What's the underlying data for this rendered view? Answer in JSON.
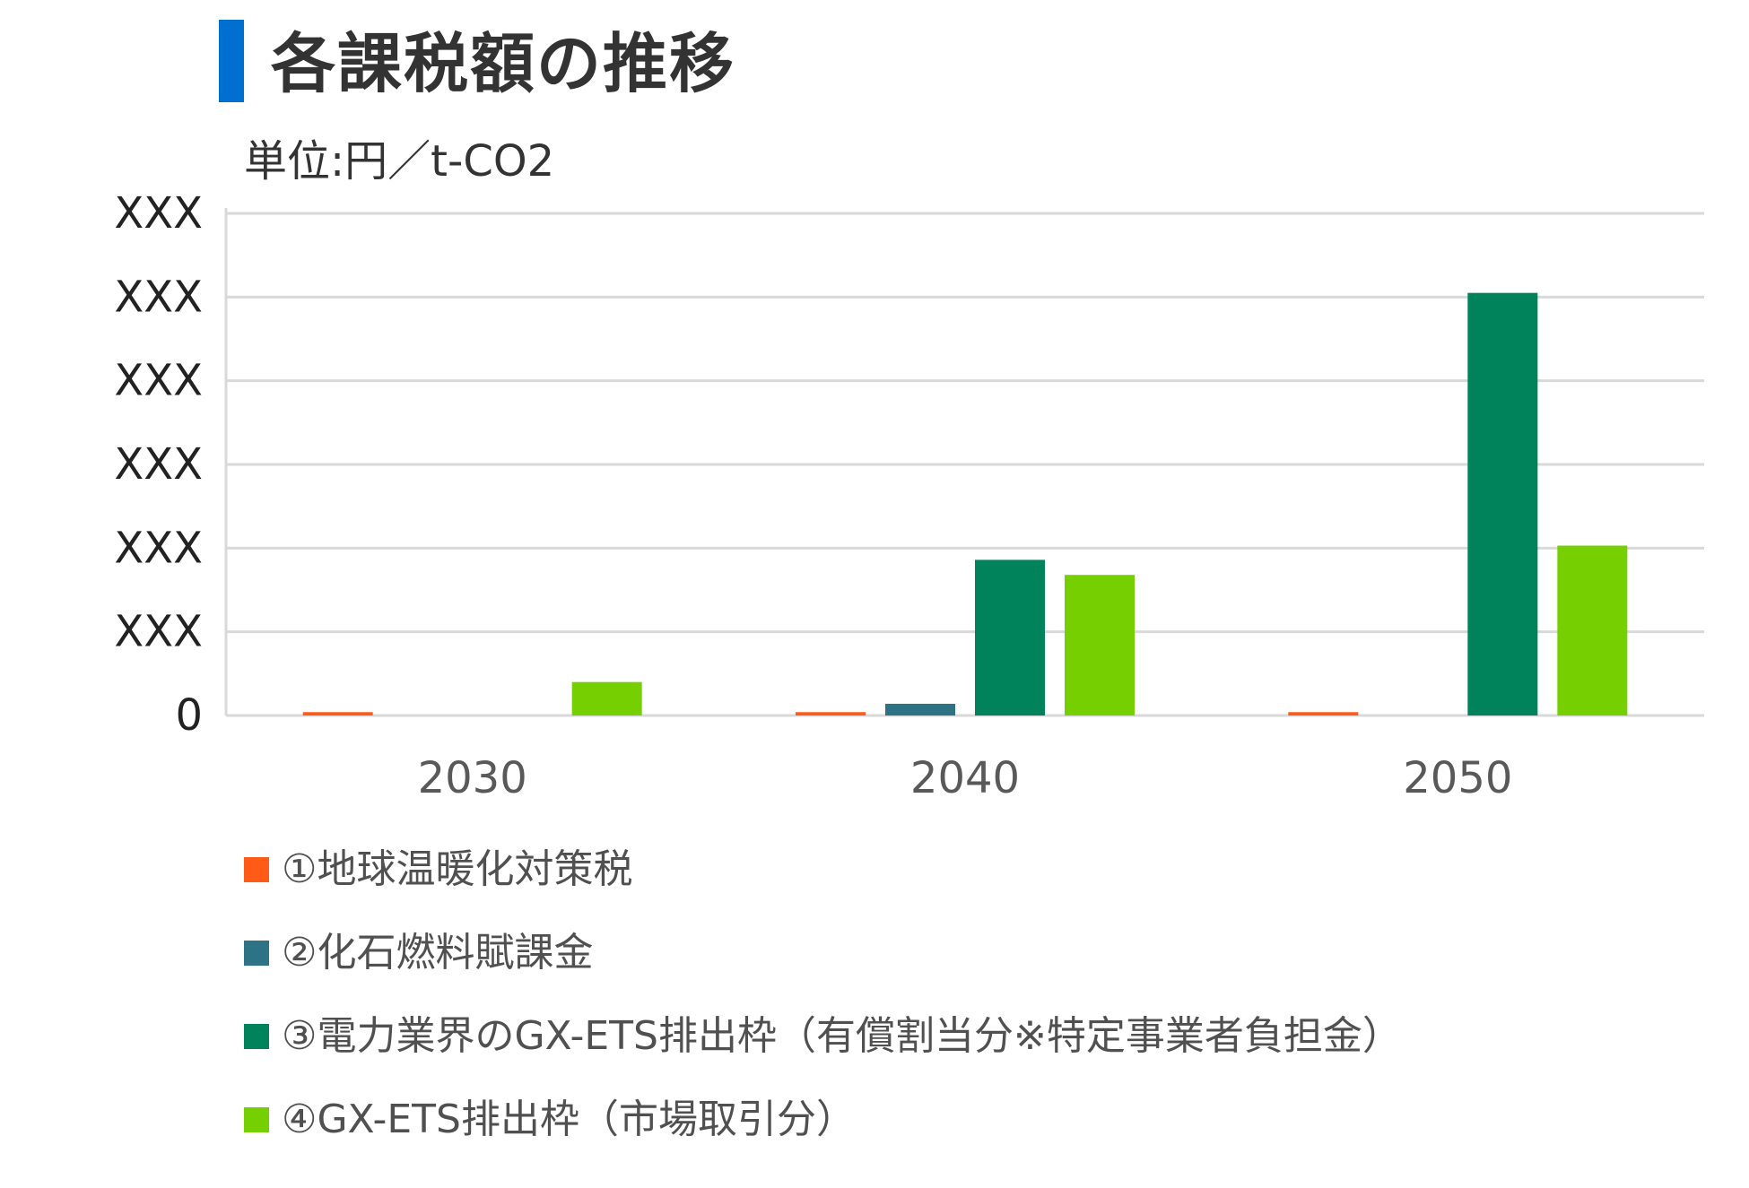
{
  "header": {
    "title": "各課税額の推移",
    "accent_color": "#0070d0"
  },
  "chart_data": {
    "type": "bar",
    "unit_label": "単位:円／t-CO2",
    "categories": [
      "2030",
      "2040",
      "2050"
    ],
    "y_tick_labels": [
      "0",
      "XXX",
      "XXX",
      "XXX",
      "XXX",
      "XXX",
      "XXX"
    ],
    "ylim": [
      0,
      6
    ],
    "grid": true,
    "legend_position": "bottom",
    "series": [
      {
        "name": "①地球温暖化対策税",
        "color": "#ff5b17",
        "values": [
          0.04,
          0.04,
          0.04
        ]
      },
      {
        "name": "②化石燃料賦課金",
        "color": "#2e7385",
        "values": [
          0,
          0.14,
          0
        ]
      },
      {
        "name": "③電力業界のGX-ETS排出枠（有償割当分※特定事業者負担金）",
        "color": "#00835a",
        "values": [
          0,
          1.86,
          5.05
        ]
      },
      {
        "name": "④GX-ETS排出枠（市場取引分）",
        "color": "#76cf00",
        "values": [
          0.4,
          1.68,
          2.03
        ]
      }
    ]
  }
}
